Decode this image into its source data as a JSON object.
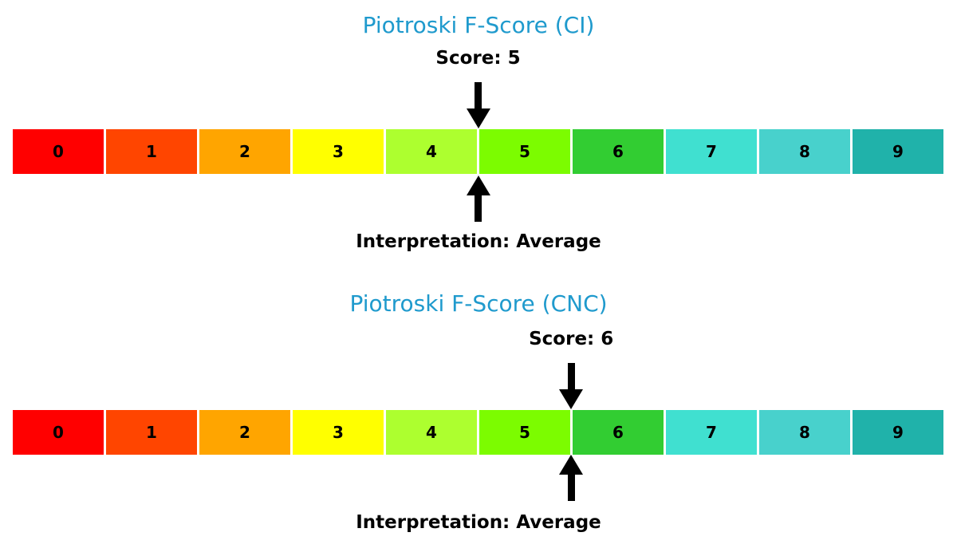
{
  "page": {
    "background_color": "#ffffff",
    "accent_title_color": "#1f9acd"
  },
  "chart_data": [
    {
      "type": "bar",
      "title": "Piotroski F-Score (CI)",
      "title_color": "#1f9acd",
      "score": 5,
      "score_label": "Score: 5",
      "interpretation": "Average",
      "annotation": "Interpretation: Average",
      "xlim": [
        0,
        10
      ],
      "categories": [
        "0",
        "1",
        "2",
        "3",
        "4",
        "5",
        "6",
        "7",
        "8",
        "9"
      ],
      "colors": [
        "#ff0000",
        "#ff4500",
        "#ffa500",
        "#ffff00",
        "#adff2f",
        "#7cfc00",
        "#32cd32",
        "#40e0d0",
        "#48d1cc",
        "#20b2aa"
      ],
      "legend": "none",
      "grid": "off"
    },
    {
      "type": "bar",
      "title": "Piotroski F-Score (CNC)",
      "title_color": "#1f9acd",
      "score": 6,
      "score_label": "Score: 6",
      "interpretation": "Average",
      "annotation": "Interpretation: Average",
      "xlim": [
        0,
        10
      ],
      "categories": [
        "0",
        "1",
        "2",
        "3",
        "4",
        "5",
        "6",
        "7",
        "8",
        "9"
      ],
      "colors": [
        "#ff0000",
        "#ff4500",
        "#ffa500",
        "#ffff00",
        "#adff2f",
        "#7cfc00",
        "#32cd32",
        "#40e0d0",
        "#48d1cc",
        "#20b2aa"
      ],
      "legend": "none",
      "grid": "off"
    }
  ]
}
